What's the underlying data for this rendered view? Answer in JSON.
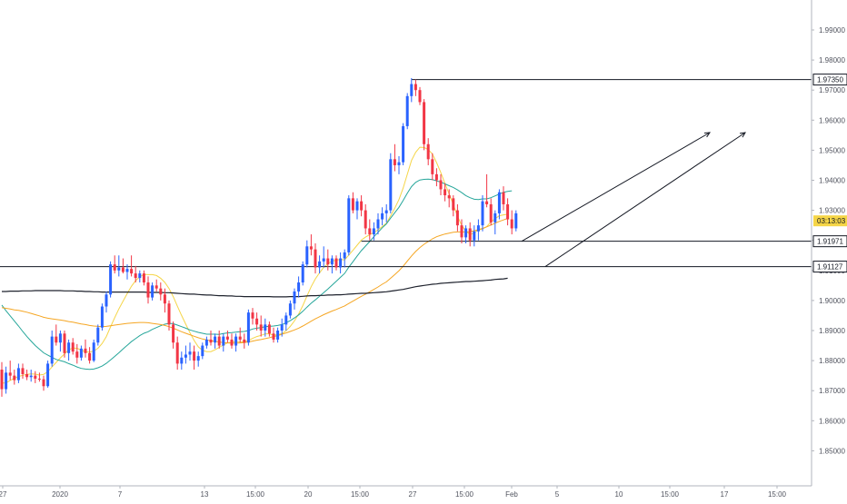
{
  "chart_data": {
    "type": "candlestick",
    "title": "",
    "xlabel": "",
    "ylabel": "",
    "ylim": [
      1.845,
      2.0
    ],
    "grid": false,
    "y_ticks": [
      "1.85000",
      "1.86000",
      "1.87000",
      "1.88000",
      "1.89000",
      "1.90000",
      "1.91000",
      "1.92000",
      "1.93000",
      "1.94000",
      "1.95000",
      "1.96000",
      "1.97000",
      "1.98000",
      "1.99000"
    ],
    "x_ticks": [
      "27",
      "2020",
      "7",
      "13",
      "15:00",
      "20",
      "15:00",
      "27",
      "15:00",
      "Feb",
      "5",
      "10",
      "15:00",
      "17",
      "15:00"
    ],
    "candles": [
      [
        1.877,
        1.8795,
        1.868,
        1.8705
      ],
      [
        1.8705,
        1.878,
        1.869,
        1.876
      ],
      [
        1.876,
        1.88,
        1.8735,
        1.875
      ],
      [
        1.875,
        1.877,
        1.872,
        1.8735
      ],
      [
        1.8735,
        1.879,
        1.8725,
        1.8775
      ],
      [
        1.8775,
        1.879,
        1.874,
        1.8755
      ],
      [
        1.8755,
        1.877,
        1.8735,
        1.8745
      ],
      [
        1.8745,
        1.877,
        1.873,
        1.875
      ],
      [
        1.875,
        1.8765,
        1.8725,
        1.874
      ],
      [
        1.874,
        1.876,
        1.873,
        1.8738
      ],
      [
        1.8738,
        1.875,
        1.87,
        1.8715
      ],
      [
        1.8715,
        1.88,
        1.871,
        1.879
      ],
      [
        1.879,
        1.89,
        1.878,
        1.888
      ],
      [
        1.888,
        1.892,
        1.885,
        1.886
      ],
      [
        1.886,
        1.89,
        1.883,
        1.889
      ],
      [
        1.889,
        1.89,
        1.881,
        1.8825
      ],
      [
        1.8825,
        1.887,
        1.88,
        1.886
      ],
      [
        1.886,
        1.8875,
        1.882,
        1.883
      ],
      [
        1.883,
        1.8855,
        1.879,
        1.881
      ],
      [
        1.881,
        1.885,
        1.88,
        1.884
      ],
      [
        1.884,
        1.887,
        1.881,
        1.8825
      ],
      [
        1.8825,
        1.8845,
        1.879,
        1.88
      ],
      [
        1.88,
        1.887,
        1.8795,
        1.886
      ],
      [
        1.886,
        1.892,
        1.885,
        1.891
      ],
      [
        1.891,
        1.899,
        1.89,
        1.898
      ],
      [
        1.898,
        1.903,
        1.896,
        1.902
      ],
      [
        1.902,
        1.913,
        1.901,
        1.912
      ],
      [
        1.912,
        1.915,
        1.909,
        1.91
      ],
      [
        1.91,
        1.915,
        1.908,
        1.911
      ],
      [
        1.911,
        1.914,
        1.909,
        1.9095
      ],
      [
        1.9095,
        1.912,
        1.907,
        1.9105
      ],
      [
        1.9105,
        1.915,
        1.908,
        1.909
      ],
      [
        1.909,
        1.9115,
        1.906,
        1.9075
      ],
      [
        1.9075,
        1.91,
        1.906,
        1.909
      ],
      [
        1.909,
        1.91,
        1.905,
        1.906
      ],
      [
        1.906,
        1.908,
        1.899,
        1.901
      ],
      [
        1.901,
        1.906,
        1.9,
        1.905
      ],
      [
        1.905,
        1.907,
        1.903,
        1.904
      ],
      [
        1.904,
        1.906,
        1.9,
        1.902
      ],
      [
        1.902,
        1.904,
        1.896,
        1.899
      ],
      [
        1.899,
        1.9,
        1.89,
        1.892
      ],
      [
        1.892,
        1.893,
        1.884,
        1.886
      ],
      [
        1.886,
        1.888,
        1.877,
        1.879
      ],
      [
        1.879,
        1.883,
        1.877,
        1.881
      ],
      [
        1.881,
        1.885,
        1.879,
        1.882
      ],
      [
        1.882,
        1.886,
        1.88,
        1.883
      ],
      [
        1.883,
        1.885,
        1.877,
        1.88
      ],
      [
        1.88,
        1.883,
        1.878,
        1.8815
      ],
      [
        1.8815,
        1.886,
        1.8805,
        1.885
      ],
      [
        1.885,
        1.888,
        1.884,
        1.887
      ],
      [
        1.887,
        1.89,
        1.885,
        1.886
      ],
      [
        1.886,
        1.889,
        1.884,
        1.888
      ],
      [
        1.888,
        1.89,
        1.884,
        1.885
      ],
      [
        1.885,
        1.889,
        1.883,
        1.888
      ],
      [
        1.888,
        1.89,
        1.886,
        1.887
      ],
      [
        1.887,
        1.889,
        1.884,
        1.885
      ],
      [
        1.885,
        1.889,
        1.883,
        1.888
      ],
      [
        1.888,
        1.891,
        1.886,
        1.887
      ],
      [
        1.887,
        1.889,
        1.884,
        1.886
      ],
      [
        1.886,
        1.897,
        1.885,
        1.896
      ],
      [
        1.896,
        1.8975,
        1.892,
        1.894
      ],
      [
        1.894,
        1.896,
        1.89,
        1.892
      ],
      [
        1.892,
        1.895,
        1.888,
        1.89
      ],
      [
        1.89,
        1.894,
        1.888,
        1.892
      ],
      [
        1.892,
        1.893,
        1.888,
        1.889
      ],
      [
        1.889,
        1.891,
        1.886,
        1.887
      ],
      [
        1.887,
        1.891,
        1.886,
        1.89
      ],
      [
        1.89,
        1.894,
        1.888,
        1.892
      ],
      [
        1.892,
        1.896,
        1.89,
        1.895
      ],
      [
        1.895,
        1.9,
        1.894,
        1.899
      ],
      [
        1.899,
        1.904,
        1.897,
        1.903
      ],
      [
        1.903,
        1.908,
        1.901,
        1.906
      ],
      [
        1.906,
        1.913,
        1.905,
        1.912
      ],
      [
        1.912,
        1.92,
        1.911,
        1.918
      ],
      [
        1.918,
        1.922,
        1.915,
        1.917
      ],
      [
        1.917,
        1.919,
        1.909,
        1.911
      ],
      [
        1.911,
        1.915,
        1.909,
        1.913
      ],
      [
        1.913,
        1.918,
        1.911,
        1.914
      ],
      [
        1.914,
        1.917,
        1.91,
        1.912
      ],
      [
        1.912,
        1.915,
        1.909,
        1.914
      ],
      [
        1.914,
        1.915,
        1.91,
        1.911
      ],
      [
        1.911,
        1.916,
        1.909,
        1.914
      ],
      [
        1.914,
        1.917,
        1.911,
        1.916
      ],
      [
        1.916,
        1.935,
        1.915,
        1.934
      ],
      [
        1.934,
        1.936,
        1.929,
        1.93
      ],
      [
        1.93,
        1.934,
        1.927,
        1.933
      ],
      [
        1.933,
        1.935,
        1.928,
        1.93
      ],
      [
        1.93,
        1.932,
        1.922,
        1.924
      ],
      [
        1.924,
        1.927,
        1.92,
        1.922
      ],
      [
        1.922,
        1.926,
        1.92,
        1.924
      ],
      [
        1.924,
        1.929,
        1.922,
        1.927
      ],
      [
        1.927,
        1.931,
        1.925,
        1.929
      ],
      [
        1.929,
        1.932,
        1.926,
        1.93
      ],
      [
        1.93,
        1.949,
        1.929,
        1.947
      ],
      [
        1.947,
        1.952,
        1.943,
        1.945
      ],
      [
        1.945,
        1.948,
        1.942,
        1.946
      ],
      [
        1.946,
        1.959,
        1.945,
        1.958
      ],
      [
        1.958,
        1.969,
        1.957,
        1.968
      ],
      [
        1.968,
        1.974,
        1.966,
        1.972
      ],
      [
        1.972,
        1.9735,
        1.968,
        1.97
      ],
      [
        1.97,
        1.971,
        1.965,
        1.966
      ],
      [
        1.966,
        1.967,
        1.95,
        1.952
      ],
      [
        1.952,
        1.954,
        1.945,
        1.947
      ],
      [
        1.947,
        1.949,
        1.94,
        1.942
      ],
      [
        1.942,
        1.944,
        1.938,
        1.94
      ],
      [
        1.94,
        1.942,
        1.935,
        1.937
      ],
      [
        1.937,
        1.939,
        1.933,
        1.935
      ],
      [
        1.935,
        1.937,
        1.931,
        1.934
      ],
      [
        1.934,
        1.935,
        1.928,
        1.93
      ],
      [
        1.93,
        1.932,
        1.923,
        1.925
      ],
      [
        1.925,
        1.927,
        1.919,
        1.921
      ],
      [
        1.921,
        1.925,
        1.919,
        1.924
      ],
      [
        1.924,
        1.926,
        1.918,
        1.92
      ],
      [
        1.92,
        1.925,
        1.918,
        1.923
      ],
      [
        1.923,
        1.927,
        1.92,
        1.925
      ],
      [
        1.925,
        1.935,
        1.923,
        1.933
      ],
      [
        1.933,
        1.942,
        1.931,
        1.932
      ],
      [
        1.932,
        1.934,
        1.925,
        1.926
      ],
      [
        1.926,
        1.93,
        1.922,
        1.929
      ],
      [
        1.929,
        1.937,
        1.927,
        1.936
      ],
      [
        1.936,
        1.938,
        1.93,
        1.932
      ],
      [
        1.932,
        1.934,
        1.925,
        1.927
      ],
      [
        1.927,
        1.93,
        1.922,
        1.924
      ],
      [
        1.924,
        1.93,
        1.923,
        1.929
      ]
    ],
    "moving_averages": [
      {
        "color": "#f5d547",
        "values": [
          1.8725,
          1.8726,
          1.8734,
          1.8741,
          1.8747,
          1.8751,
          1.8754,
          1.8756,
          1.8755,
          1.8752,
          1.8754,
          1.8763,
          1.8779,
          1.8794,
          1.8809,
          1.8822,
          1.8836,
          1.8842,
          1.8841,
          1.8835,
          1.8829,
          1.8828,
          1.8832,
          1.8841,
          1.8857,
          1.888,
          1.8912,
          1.8943,
          1.8972,
          1.8998,
          1.9023,
          1.9047,
          1.9066,
          1.9079,
          1.9087,
          1.9086,
          1.9086,
          1.9083,
          1.9074,
          1.906,
          1.904,
          1.9013,
          1.8981,
          1.895,
          1.8921,
          1.8893,
          1.8867,
          1.8846,
          1.8834,
          1.883,
          1.883,
          1.8836,
          1.8844,
          1.8852,
          1.8859,
          1.8862,
          1.8863,
          1.8863,
          1.8862,
          1.8867,
          1.8874,
          1.888,
          1.8884,
          1.8889,
          1.8889,
          1.8885,
          1.8886,
          1.889,
          1.8899,
          1.8914,
          1.8932,
          1.8955,
          1.8983,
          1.9015,
          1.9046,
          1.9072,
          1.9092,
          1.911,
          1.9122,
          1.9131,
          1.9134,
          1.9137,
          1.9135,
          1.9151,
          1.9167,
          1.9184,
          1.9201,
          1.9211,
          1.9219,
          1.9226,
          1.9235,
          1.9246,
          1.9257,
          1.9282,
          1.9307,
          1.9336,
          1.9374,
          1.942,
          1.9466,
          1.9493,
          1.951,
          1.9509,
          1.9502,
          1.9487,
          1.9459,
          1.9426,
          1.9389,
          1.9355,
          1.9319,
          1.928,
          1.925,
          1.9231,
          1.9219,
          1.9225,
          1.9235,
          1.9238,
          1.9246,
          1.9262,
          1.9272,
          1.9282,
          1.9285,
          1.9287
        ]
      },
      {
        "color": "#26a69a",
        "values": [
          1.8985,
          1.8966,
          1.8949,
          1.8932,
          1.8915,
          1.8897,
          1.888,
          1.8865,
          1.885,
          1.8838,
          1.8826,
          1.8818,
          1.8811,
          1.8804,
          1.88,
          1.8796,
          1.879,
          1.8785,
          1.8779,
          1.8774,
          1.8772,
          1.8771,
          1.8772,
          1.8776,
          1.8782,
          1.8791,
          1.8802,
          1.8814,
          1.8826,
          1.8839,
          1.8851,
          1.8863,
          1.8873,
          1.8883,
          1.8891,
          1.8896,
          1.8904,
          1.891,
          1.8916,
          1.8921,
          1.8924,
          1.8923,
          1.8918,
          1.8913,
          1.8908,
          1.8902,
          1.8898,
          1.8894,
          1.8891,
          1.8888,
          1.8888,
          1.8888,
          1.8887,
          1.889,
          1.8892,
          1.8893,
          1.8895,
          1.8896,
          1.8897,
          1.89,
          1.8905,
          1.8908,
          1.891,
          1.8913,
          1.8914,
          1.8915,
          1.8917,
          1.892,
          1.8926,
          1.8933,
          1.8942,
          1.8952,
          1.8964,
          1.8978,
          1.8991,
          1.9002,
          1.9014,
          1.9026,
          1.9038,
          1.9051,
          1.9064,
          1.9077,
          1.909,
          1.9111,
          1.9129,
          1.9148,
          1.9166,
          1.9181,
          1.9196,
          1.9212,
          1.9227,
          1.9242,
          1.9255,
          1.9274,
          1.9292,
          1.931,
          1.9333,
          1.9357,
          1.9379,
          1.9393,
          1.9401,
          1.9403,
          1.9404,
          1.9402,
          1.9398,
          1.9394,
          1.9388,
          1.9382,
          1.9376,
          1.9368,
          1.9359,
          1.9349,
          1.9342,
          1.9337,
          1.9336,
          1.9338,
          1.9338,
          1.9342,
          1.9348,
          1.9354,
          1.936,
          1.9363,
          1.9365
        ]
      },
      {
        "color": "#f5a623",
        "values": [
          1.8976,
          1.8974,
          1.8972,
          1.8969,
          1.8967,
          1.8964,
          1.8961,
          1.8957,
          1.8953,
          1.8949,
          1.8944,
          1.8941,
          1.8939,
          1.8937,
          1.8935,
          1.8933,
          1.893,
          1.8928,
          1.8925,
          1.8922,
          1.892,
          1.8917,
          1.8915,
          1.8914,
          1.8913,
          1.8914,
          1.8916,
          1.8918,
          1.892,
          1.8922,
          1.8924,
          1.8925,
          1.8926,
          1.8927,
          1.8927,
          1.8926,
          1.8924,
          1.8922,
          1.892,
          1.8917,
          1.8913,
          1.8908,
          1.8902,
          1.8896,
          1.8891,
          1.8886,
          1.8881,
          1.8876,
          1.8872,
          1.8869,
          1.8866,
          1.8864,
          1.8862,
          1.886,
          1.8859,
          1.8858,
          1.8858,
          1.8859,
          1.886,
          1.8862,
          1.8865,
          1.8868,
          1.887,
          1.8873,
          1.8876,
          1.888,
          1.8883,
          1.8888,
          1.8892,
          1.8897,
          1.8902,
          1.8908,
          1.8915,
          1.8923,
          1.8931,
          1.8939,
          1.8946,
          1.8953,
          1.8959,
          1.8965,
          1.897,
          1.8976,
          1.8982,
          1.899,
          1.8998,
          1.9006,
          1.9014,
          1.9021,
          1.9029,
          1.9037,
          1.9045,
          1.9054,
          1.9062,
          1.9074,
          1.9086,
          1.9099,
          1.9114,
          1.9131,
          1.9148,
          1.9163,
          1.9176,
          1.9187,
          1.9196,
          1.9205,
          1.9212,
          1.9217,
          1.9221,
          1.9224,
          1.9227,
          1.9228,
          1.9228,
          1.9228,
          1.9229,
          1.9232,
          1.9236,
          1.924,
          1.9245,
          1.9251,
          1.9257,
          1.9263,
          1.9268,
          1.9273
        ]
      },
      {
        "color": "#1e222d",
        "values": [
          1.903,
          1.903,
          1.9031,
          1.9031,
          1.9031,
          1.9032,
          1.9032,
          1.9032,
          1.9033,
          1.9033,
          1.9033,
          1.9033,
          1.9033,
          1.9033,
          1.9033,
          1.9032,
          1.9032,
          1.9032,
          1.9031,
          1.9031,
          1.903,
          1.903,
          1.9029,
          1.9029,
          1.9028,
          1.9028,
          1.9028,
          1.9028,
          1.9028,
          1.9028,
          1.9028,
          1.9028,
          1.9028,
          1.9028,
          1.9028,
          1.9027,
          1.9027,
          1.9027,
          1.9027,
          1.9026,
          1.9026,
          1.9025,
          1.9024,
          1.9023,
          1.9022,
          1.9021,
          1.9021,
          1.902,
          1.9019,
          1.9018,
          1.9018,
          1.9017,
          1.9016,
          1.9016,
          1.9015,
          1.9015,
          1.9014,
          1.9014,
          1.9013,
          1.9013,
          1.9013,
          1.9013,
          1.9013,
          1.9013,
          1.9013,
          1.9012,
          1.9012,
          1.9012,
          1.9012,
          1.9013,
          1.9013,
          1.9013,
          1.9014,
          1.9015,
          1.9016,
          1.9016,
          1.9017,
          1.9017,
          1.9018,
          1.9018,
          1.9019,
          1.9019,
          1.902,
          1.9021,
          1.9022,
          1.9023,
          1.9024,
          1.9024,
          1.9025,
          1.9026,
          1.9027,
          1.9028,
          1.9029,
          1.9031,
          1.9033,
          1.9035,
          1.9037,
          1.904,
          1.9043,
          1.9046,
          1.9048,
          1.905,
          1.9052,
          1.9054,
          1.9055,
          1.9057,
          1.9058,
          1.9059,
          1.906,
          1.9061,
          1.9062,
          1.9063,
          1.9063,
          1.9064,
          1.9065,
          1.9066,
          1.9067,
          1.9068,
          1.907,
          1.9071,
          1.9072,
          1.9074
        ]
      }
    ],
    "horizontal_levels": [
      {
        "price": 1.9735,
        "label": "1.97350"
      },
      {
        "price": 1.91971,
        "label": "1.91971"
      },
      {
        "price": 1.91127,
        "label": "1.91127"
      }
    ],
    "current_price": {
      "label": "03:13:03",
      "price": 1.9265
    },
    "projection_arrows": 2,
    "colors": {
      "up": "#2962ff",
      "down": "#f23645",
      "level": "#131722",
      "badge_bg": "#ffffff",
      "current_bg": "#f5d547"
    }
  }
}
